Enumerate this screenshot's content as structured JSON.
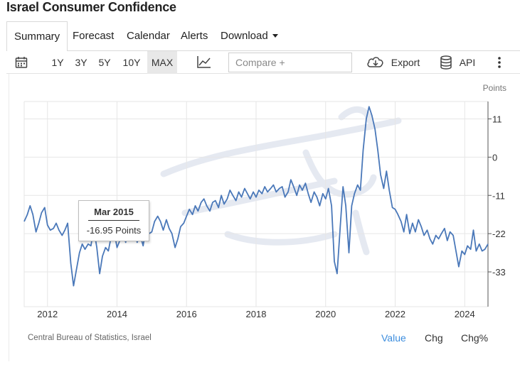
{
  "page": {
    "title": "Israel Consumer Confidence"
  },
  "nav": {
    "tabs": [
      {
        "label": "Summary",
        "active": true
      },
      {
        "label": "Forecast"
      },
      {
        "label": "Calendar"
      },
      {
        "label": "Alerts"
      },
      {
        "label": "Download"
      }
    ]
  },
  "toolbar": {
    "ranges": [
      "1Y",
      "3Y",
      "5Y",
      "10Y",
      "MAX"
    ],
    "active_range": "MAX",
    "compare_placeholder": "Compare +",
    "export_label": "Export",
    "api_label": "API"
  },
  "tooltip": {
    "date": "Mar 2015",
    "value": "-16.95 Points"
  },
  "footer": {
    "source": "Central Bureau of Statistics, Israel",
    "views": [
      "Value",
      "Chg",
      "Chg%"
    ],
    "active_view": "Value"
  },
  "chart_data": {
    "type": "line",
    "title": "Israel Consumer Confidence",
    "ylabel": "Points",
    "xlabel": "",
    "y_ticks": [
      11,
      0,
      -11,
      -22,
      -33
    ],
    "x_ticks": [
      2012,
      2014,
      2016,
      2018,
      2020,
      2022,
      2024
    ],
    "xlim": [
      2011.33,
      2024.67
    ],
    "ylim": [
      -43,
      16
    ],
    "grid": true,
    "series": [
      {
        "name": "Consumer Confidence",
        "color": "#4a78b9",
        "points": [
          [
            2011.33,
            -18.5
          ],
          [
            2011.42,
            -16.5
          ],
          [
            2011.5,
            -14.0
          ],
          [
            2011.58,
            -16.5
          ],
          [
            2011.67,
            -21.5
          ],
          [
            2011.75,
            -19.0
          ],
          [
            2011.83,
            -16.0
          ],
          [
            2011.92,
            -14.5
          ],
          [
            2012.0,
            -19.5
          ],
          [
            2012.08,
            -21.0
          ],
          [
            2012.17,
            -20.5
          ],
          [
            2012.25,
            -19.0
          ],
          [
            2012.33,
            -21.0
          ],
          [
            2012.42,
            -22.5
          ],
          [
            2012.5,
            -21.0
          ],
          [
            2012.58,
            -19.0
          ],
          [
            2012.67,
            -30.5
          ],
          [
            2012.75,
            -37.0
          ],
          [
            2012.83,
            -32.5
          ],
          [
            2012.92,
            -27.5
          ],
          [
            2013.0,
            -25.0
          ],
          [
            2013.08,
            -26.5
          ],
          [
            2013.17,
            -25.0
          ],
          [
            2013.25,
            -25.5
          ],
          [
            2013.33,
            -20.5
          ],
          [
            2013.42,
            -26.0
          ],
          [
            2013.5,
            -33.5
          ],
          [
            2013.58,
            -28.5
          ],
          [
            2013.67,
            -26.0
          ],
          [
            2013.75,
            -27.0
          ],
          [
            2013.83,
            -23.0
          ],
          [
            2013.92,
            -21.5
          ],
          [
            2014.0,
            -26.0
          ],
          [
            2014.08,
            -24.0
          ],
          [
            2014.17,
            -22.0
          ],
          [
            2014.25,
            -24.5
          ],
          [
            2014.33,
            -19.0
          ],
          [
            2014.42,
            -18.5
          ],
          [
            2014.5,
            -21.5
          ],
          [
            2014.58,
            -24.5
          ],
          [
            2014.67,
            -22.5
          ],
          [
            2014.75,
            -25.5
          ],
          [
            2014.83,
            -20.5
          ],
          [
            2014.92,
            -22.0
          ],
          [
            2015.0,
            -21.5
          ],
          [
            2015.08,
            -18.5
          ],
          [
            2015.17,
            -17.0
          ],
          [
            2015.25,
            -18.5
          ],
          [
            2015.33,
            -21.0
          ],
          [
            2015.42,
            -18.0
          ],
          [
            2015.5,
            -20.5
          ],
          [
            2015.58,
            -22.0
          ],
          [
            2015.67,
            -26.0
          ],
          [
            2015.75,
            -23.5
          ],
          [
            2015.83,
            -20.0
          ],
          [
            2015.92,
            -19.0
          ],
          [
            2016.0,
            -17.0
          ],
          [
            2016.08,
            -15.0
          ],
          [
            2016.17,
            -16.5
          ],
          [
            2016.25,
            -14.0
          ],
          [
            2016.33,
            -15.5
          ],
          [
            2016.42,
            -13.0
          ],
          [
            2016.5,
            -12.0
          ],
          [
            2016.58,
            -14.0
          ],
          [
            2016.67,
            -15.5
          ],
          [
            2016.75,
            -13.0
          ],
          [
            2016.83,
            -12.5
          ],
          [
            2016.92,
            -14.5
          ],
          [
            2017.0,
            -11.0
          ],
          [
            2017.08,
            -13.5
          ],
          [
            2017.17,
            -12.0
          ],
          [
            2017.25,
            -9.5
          ],
          [
            2017.33,
            -11.0
          ],
          [
            2017.42,
            -12.5
          ],
          [
            2017.5,
            -10.0
          ],
          [
            2017.58,
            -11.5
          ],
          [
            2017.67,
            -9.0
          ],
          [
            2017.75,
            -10.5
          ],
          [
            2017.83,
            -12.0
          ],
          [
            2017.92,
            -10.0
          ],
          [
            2018.0,
            -11.5
          ],
          [
            2018.08,
            -9.5
          ],
          [
            2018.17,
            -10.5
          ],
          [
            2018.25,
            -8.5
          ],
          [
            2018.33,
            -10.0
          ],
          [
            2018.42,
            -9.0
          ],
          [
            2018.5,
            -8.0
          ],
          [
            2018.58,
            -10.0
          ],
          [
            2018.67,
            -9.0
          ],
          [
            2018.75,
            -8.5
          ],
          [
            2018.83,
            -11.5
          ],
          [
            2018.92,
            -10.0
          ],
          [
            2019.0,
            -6.5
          ],
          [
            2019.08,
            -8.5
          ],
          [
            2019.17,
            -11.0
          ],
          [
            2019.25,
            -8.0
          ],
          [
            2019.33,
            -9.5
          ],
          [
            2019.42,
            -7.5
          ],
          [
            2019.5,
            -10.5
          ],
          [
            2019.58,
            -13.0
          ],
          [
            2019.67,
            -10.0
          ],
          [
            2019.75,
            -11.5
          ],
          [
            2019.83,
            -14.0
          ],
          [
            2019.92,
            -10.5
          ],
          [
            2020.0,
            -12.0
          ],
          [
            2020.08,
            -9.0
          ],
          [
            2020.17,
            -14.0
          ],
          [
            2020.25,
            -30.0
          ],
          [
            2020.33,
            -33.5
          ],
          [
            2020.42,
            -20.0
          ],
          [
            2020.5,
            -8.5
          ],
          [
            2020.58,
            -14.0
          ],
          [
            2020.67,
            -27.5
          ],
          [
            2020.75,
            -14.0
          ],
          [
            2020.83,
            -10.5
          ],
          [
            2020.92,
            -8.0
          ],
          [
            2021.0,
            -9.5
          ],
          [
            2021.08,
            2.0
          ],
          [
            2021.17,
            11.0
          ],
          [
            2021.25,
            14.5
          ],
          [
            2021.33,
            12.0
          ],
          [
            2021.42,
            8.0
          ],
          [
            2021.5,
            2.0
          ],
          [
            2021.58,
            -5.0
          ],
          [
            2021.67,
            -9.0
          ],
          [
            2021.75,
            -4.0
          ],
          [
            2021.83,
            -9.5
          ],
          [
            2021.92,
            -14.5
          ],
          [
            2022.0,
            -15.0
          ],
          [
            2022.08,
            -16.5
          ],
          [
            2022.17,
            -18.5
          ],
          [
            2022.25,
            -21.5
          ],
          [
            2022.33,
            -16.5
          ],
          [
            2022.42,
            -22.0
          ],
          [
            2022.5,
            -19.0
          ],
          [
            2022.58,
            -21.5
          ],
          [
            2022.67,
            -18.0
          ],
          [
            2022.75,
            -20.0
          ],
          [
            2022.83,
            -22.5
          ],
          [
            2022.92,
            -21.0
          ],
          [
            2023.0,
            -23.5
          ],
          [
            2023.08,
            -25.0
          ],
          [
            2023.17,
            -22.5
          ],
          [
            2023.25,
            -23.5
          ],
          [
            2023.33,
            -22.0
          ],
          [
            2023.42,
            -20.5
          ],
          [
            2023.5,
            -24.0
          ],
          [
            2023.58,
            -21.5
          ],
          [
            2023.67,
            -22.5
          ],
          [
            2023.75,
            -27.0
          ],
          [
            2023.83,
            -31.5
          ],
          [
            2023.92,
            -27.0
          ],
          [
            2024.0,
            -28.0
          ],
          [
            2024.08,
            -25.5
          ],
          [
            2024.17,
            -26.5
          ],
          [
            2024.25,
            -21.0
          ],
          [
            2024.33,
            -27.0
          ],
          [
            2024.42,
            -25.0
          ],
          [
            2024.5,
            -27.0
          ],
          [
            2024.58,
            -26.5
          ],
          [
            2024.67,
            -25.0
          ]
        ]
      }
    ]
  }
}
